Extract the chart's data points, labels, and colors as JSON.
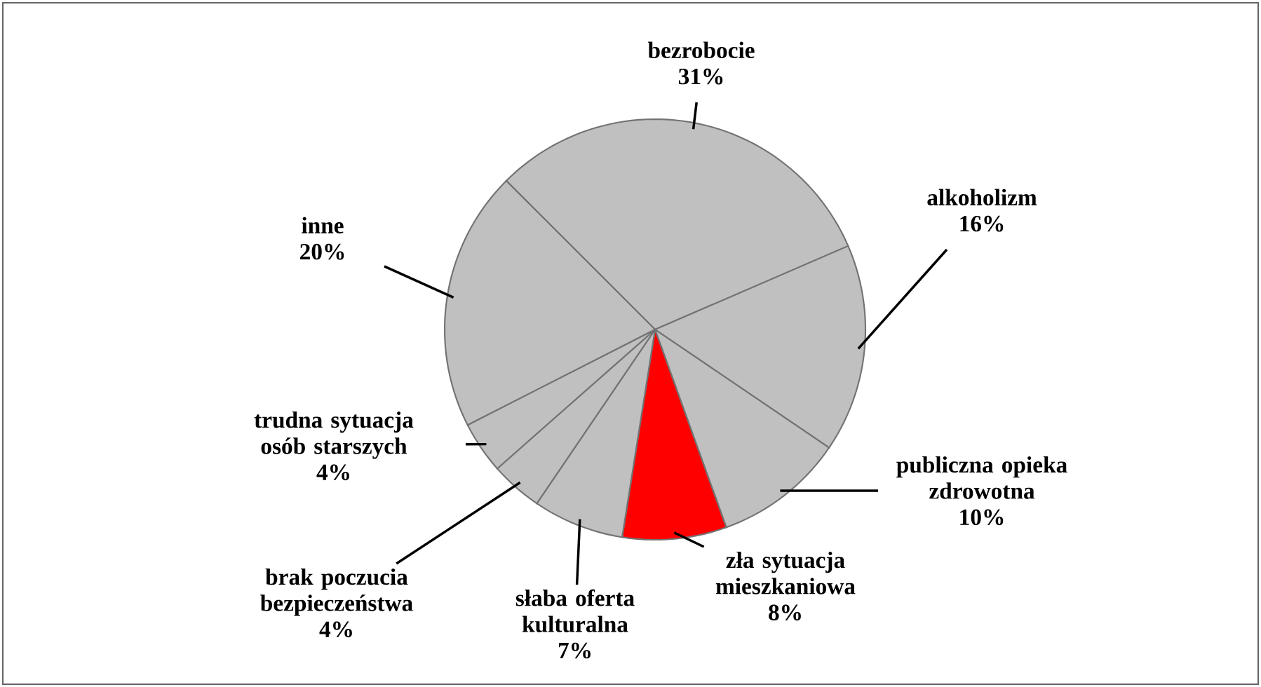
{
  "chart_data": {
    "type": "pie",
    "categories": [
      "bezrobocie",
      "alkoholizm",
      "publiczna opieka zdrowotna",
      "zła sytuacja mieszkaniowa",
      "słaba oferta kulturalna",
      "brak poczucia bezpieczeństwa",
      "trudna sytuacja osób starszych",
      "inne"
    ],
    "values": [
      31,
      16,
      10,
      8,
      7,
      4,
      4,
      20
    ],
    "value_labels": [
      "31%",
      "16%",
      "10%",
      "8%",
      "7%",
      "4%",
      "4%",
      "20%"
    ],
    "colors": [
      "#c0c0c0",
      "#c0c0c0",
      "#c0c0c0",
      "#ff0000",
      "#c0c0c0",
      "#c0c0c0",
      "#c0c0c0",
      "#c0c0c0"
    ]
  }
}
